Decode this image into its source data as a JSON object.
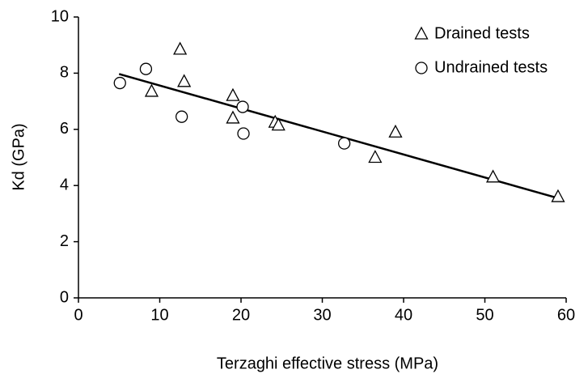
{
  "chart_data": {
    "type": "scatter",
    "x_label": "Terzaghi effective stress (MPa)",
    "y_label": "Kd (GPa)",
    "xlim": [
      0,
      60
    ],
    "xticks": [
      0,
      10,
      20,
      30,
      40,
      50,
      60
    ],
    "ylim": [
      0,
      10
    ],
    "yticks": [
      0,
      2,
      4,
      6,
      8,
      10
    ],
    "grid": false,
    "legend": "top-right",
    "series": [
      {
        "name": "Drained tests",
        "marker": "triangle",
        "color": "#000000",
        "x": [
          12.5,
          9,
          13,
          19,
          19,
          24.2,
          24.6,
          36.5,
          39,
          51,
          59
        ],
        "values": [
          8.85,
          7.35,
          7.7,
          7.2,
          6.4,
          6.25,
          6.15,
          5.0,
          5.9,
          4.3,
          3.6
        ]
      },
      {
        "name": "Undrained tests",
        "marker": "circle",
        "color": "#000000",
        "x": [
          5.1,
          8.3,
          12.7,
          20.2,
          20.3,
          32.7
        ],
        "values": [
          7.65,
          8.15,
          6.45,
          6.8,
          5.85,
          5.5
        ]
      }
    ],
    "trendline": {
      "x": [
        5,
        59
      ],
      "values": [
        7.97,
        3.55
      ],
      "color": "#000000"
    }
  }
}
